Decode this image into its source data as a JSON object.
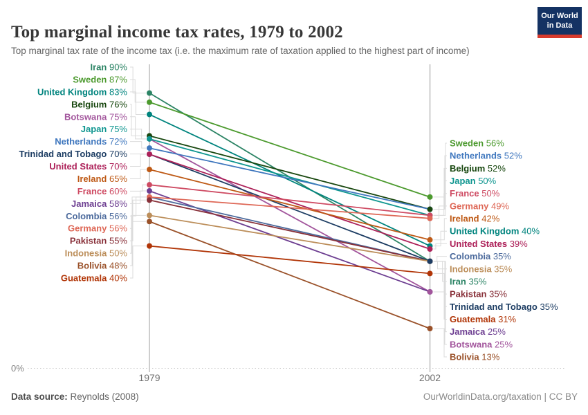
{
  "header": {
    "title": "Top marginal income tax rates, 1979 to 2002",
    "subtitle": "Top marginal tax rate of the income tax (i.e. the maximum rate of taxation applied to the highest part of income)",
    "logo": {
      "line1": "Our World",
      "line2": "in Data",
      "bg": "#143263",
      "accent": "#D73A2C"
    }
  },
  "chart_data": {
    "type": "line",
    "variant": "slope",
    "x": [
      "1979",
      "2002"
    ],
    "ylim": [
      0,
      90
    ],
    "baseline_label": "0%",
    "grid": "dotted-baseline-only",
    "legend_position": "labels-at-line-ends",
    "series": [
      {
        "name": "Iran",
        "values": [
          90,
          35
        ],
        "color": "#2C8465",
        "right_rank": 11
      },
      {
        "name": "Sweden",
        "values": [
          87,
          56
        ],
        "color": "#4C9A2E",
        "right_rank": 0
      },
      {
        "name": "United Kingdom",
        "values": [
          83,
          40
        ],
        "color": "#00847E",
        "right_rank": 7
      },
      {
        "name": "Belgium",
        "values": [
          76,
          52
        ],
        "color": "#18470F",
        "right_rank": 2
      },
      {
        "name": "Botswana",
        "values": [
          75,
          25
        ],
        "color": "#A2559C",
        "right_rank": 16
      },
      {
        "name": "Japan",
        "values": [
          75,
          50
        ],
        "color": "#0F9690",
        "right_rank": 3
      },
      {
        "name": "Netherlands",
        "values": [
          72,
          52
        ],
        "color": "#3F77BE",
        "right_rank": 1
      },
      {
        "name": "Trinidad and Tobago",
        "values": [
          70,
          35
        ],
        "color": "#1D3D63",
        "right_rank": 13
      },
      {
        "name": "United States",
        "values": [
          70,
          39
        ],
        "color": "#AD2159",
        "right_rank": 8
      },
      {
        "name": "Ireland",
        "values": [
          65,
          42
        ],
        "color": "#BE5915",
        "right_rank": 6
      },
      {
        "name": "France",
        "values": [
          60,
          50
        ],
        "color": "#CE4A62",
        "right_rank": 4
      },
      {
        "name": "Jamaica",
        "values": [
          58,
          25
        ],
        "color": "#6D3E91",
        "right_rank": 15
      },
      {
        "name": "Colombia",
        "values": [
          56,
          35
        ],
        "color": "#4C6A9C",
        "right_rank": 9
      },
      {
        "name": "Germany",
        "values": [
          56,
          49
        ],
        "color": "#DE6756",
        "right_rank": 5
      },
      {
        "name": "Pakistan",
        "values": [
          55,
          35
        ],
        "color": "#883039",
        "right_rank": 12
      },
      {
        "name": "Indonesia",
        "values": [
          50,
          35
        ],
        "color": "#BC8E5A",
        "right_rank": 10
      },
      {
        "name": "Bolivia",
        "values": [
          48,
          13
        ],
        "color": "#9A5129",
        "right_rank": 17
      },
      {
        "name": "Guatemala",
        "values": [
          40,
          31
        ],
        "color": "#B13507",
        "right_rank": 14
      }
    ]
  },
  "footer": {
    "source_label": "Data source:",
    "source_value": "Reynolds (2008)",
    "credit": "OurWorldinData.org/taxation | CC BY"
  }
}
